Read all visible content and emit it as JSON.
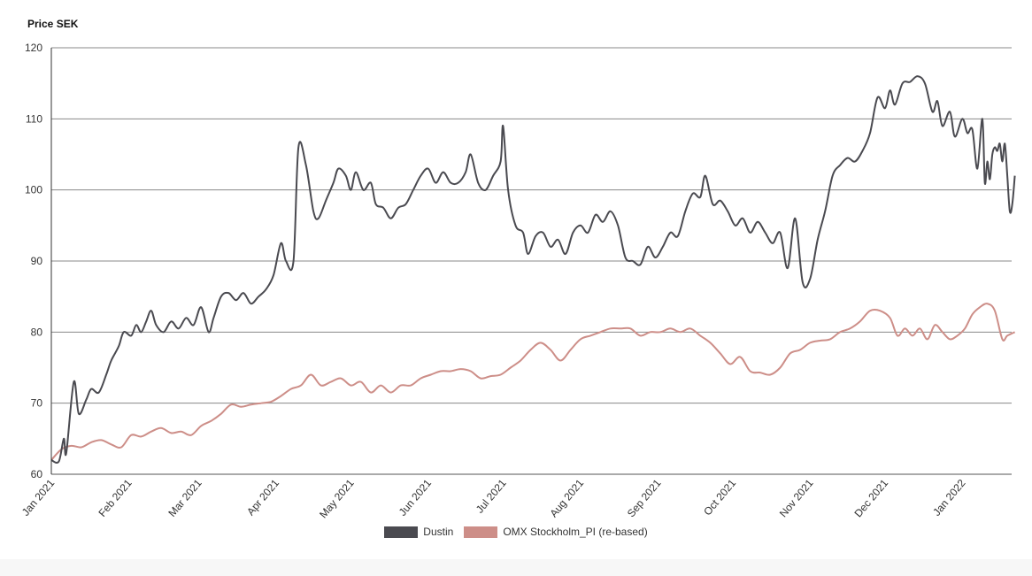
{
  "chart_data": {
    "type": "line",
    "ylabel": "Price SEK",
    "ylim": [
      60,
      120
    ],
    "yticks": [
      60,
      70,
      80,
      90,
      100,
      110,
      120
    ],
    "xlim": [
      "2021-01-01",
      "2022-01-14"
    ],
    "xticks": [
      {
        "label": "Jan 2021",
        "date": "2021-01-01"
      },
      {
        "label": "Feb 2021",
        "date": "2021-02-01"
      },
      {
        "label": "Mar 2021",
        "date": "2021-03-01"
      },
      {
        "label": "Apr 2021",
        "date": "2021-04-01"
      },
      {
        "label": "May 2021",
        "date": "2021-05-01"
      },
      {
        "label": "Jun 2021",
        "date": "2021-06-01"
      },
      {
        "label": "Jul 2021",
        "date": "2021-07-01"
      },
      {
        "label": "Aug 2021",
        "date": "2021-08-01"
      },
      {
        "label": "Sep 2021",
        "date": "2021-09-01"
      },
      {
        "label": "Oct 2021",
        "date": "2021-10-01"
      },
      {
        "label": "Nov 2021",
        "date": "2021-11-01"
      },
      {
        "label": "Dec 2021",
        "date": "2021-12-01"
      },
      {
        "label": "Jan 2022",
        "date": "2022-01-01"
      }
    ],
    "grid": "horizontal",
    "legend_position": "bottom-center",
    "series": [
      {
        "name": "Dustin",
        "color": "#4a4a50",
        "points": [
          [
            "2021-01-01",
            62
          ],
          [
            "2021-01-04",
            61.8
          ],
          [
            "2021-01-06",
            65
          ],
          [
            "2021-01-07",
            63
          ],
          [
            "2021-01-10",
            73
          ],
          [
            "2021-01-12",
            68.5
          ],
          [
            "2021-01-15",
            70.5
          ],
          [
            "2021-01-17",
            72
          ],
          [
            "2021-01-20",
            71.5
          ],
          [
            "2021-01-23",
            74
          ],
          [
            "2021-01-25",
            76
          ],
          [
            "2021-01-28",
            78
          ],
          [
            "2021-01-30",
            80
          ],
          [
            "2021-02-02",
            79.5
          ],
          [
            "2021-02-04",
            81
          ],
          [
            "2021-02-06",
            80
          ],
          [
            "2021-02-08",
            81.5
          ],
          [
            "2021-02-10",
            83
          ],
          [
            "2021-02-12",
            81
          ],
          [
            "2021-02-15",
            80
          ],
          [
            "2021-02-18",
            81.5
          ],
          [
            "2021-02-21",
            80.5
          ],
          [
            "2021-02-24",
            82
          ],
          [
            "2021-02-27",
            81
          ],
          [
            "2021-03-02",
            83.5
          ],
          [
            "2021-03-05",
            80
          ],
          [
            "2021-03-07",
            82
          ],
          [
            "2021-03-10",
            85
          ],
          [
            "2021-03-13",
            85.5
          ],
          [
            "2021-03-16",
            84.5
          ],
          [
            "2021-03-19",
            85.5
          ],
          [
            "2021-03-22",
            84
          ],
          [
            "2021-03-25",
            85
          ],
          [
            "2021-03-28",
            86
          ],
          [
            "2021-03-31",
            88
          ],
          [
            "2021-04-03",
            92.5
          ],
          [
            "2021-04-05",
            90
          ],
          [
            "2021-04-08",
            90
          ],
          [
            "2021-04-10",
            106
          ],
          [
            "2021-04-13",
            103.5
          ],
          [
            "2021-04-16",
            97
          ],
          [
            "2021-04-18",
            96
          ],
          [
            "2021-04-21",
            98.5
          ],
          [
            "2021-04-24",
            101
          ],
          [
            "2021-04-26",
            103
          ],
          [
            "2021-04-29",
            102
          ],
          [
            "2021-05-01",
            100
          ],
          [
            "2021-05-03",
            102.5
          ],
          [
            "2021-05-06",
            100
          ],
          [
            "2021-05-09",
            101
          ],
          [
            "2021-05-11",
            98
          ],
          [
            "2021-05-14",
            97.5
          ],
          [
            "2021-05-17",
            96
          ],
          [
            "2021-05-20",
            97.5
          ],
          [
            "2021-05-23",
            98
          ],
          [
            "2021-05-26",
            100
          ],
          [
            "2021-05-29",
            102
          ],
          [
            "2021-06-01",
            103
          ],
          [
            "2021-06-04",
            101
          ],
          [
            "2021-06-07",
            102.5
          ],
          [
            "2021-06-10",
            101
          ],
          [
            "2021-06-13",
            101
          ],
          [
            "2021-06-16",
            102.5
          ],
          [
            "2021-06-18",
            105
          ],
          [
            "2021-06-21",
            101
          ],
          [
            "2021-06-24",
            100
          ],
          [
            "2021-06-27",
            102
          ],
          [
            "2021-06-30",
            104
          ],
          [
            "2021-07-01",
            109
          ],
          [
            "2021-07-03",
            100
          ],
          [
            "2021-07-06",
            95
          ],
          [
            "2021-07-09",
            94
          ],
          [
            "2021-07-11",
            91
          ],
          [
            "2021-07-14",
            93.5
          ],
          [
            "2021-07-17",
            94
          ],
          [
            "2021-07-20",
            92
          ],
          [
            "2021-07-23",
            93
          ],
          [
            "2021-07-26",
            91
          ],
          [
            "2021-07-29",
            94
          ],
          [
            "2021-08-01",
            95
          ],
          [
            "2021-08-04",
            94
          ],
          [
            "2021-08-07",
            96.5
          ],
          [
            "2021-08-10",
            95.5
          ],
          [
            "2021-08-13",
            97
          ],
          [
            "2021-08-16",
            95
          ],
          [
            "2021-08-19",
            90.5
          ],
          [
            "2021-08-22",
            90
          ],
          [
            "2021-08-25",
            89.5
          ],
          [
            "2021-08-28",
            92
          ],
          [
            "2021-08-31",
            90.5
          ],
          [
            "2021-09-03",
            92
          ],
          [
            "2021-09-06",
            94
          ],
          [
            "2021-09-09",
            93.5
          ],
          [
            "2021-09-12",
            97
          ],
          [
            "2021-09-15",
            99.5
          ],
          [
            "2021-09-18",
            99
          ],
          [
            "2021-09-20",
            102
          ],
          [
            "2021-09-23",
            98
          ],
          [
            "2021-09-26",
            98.5
          ],
          [
            "2021-09-29",
            97
          ],
          [
            "2021-10-02",
            95
          ],
          [
            "2021-10-05",
            96
          ],
          [
            "2021-10-08",
            94
          ],
          [
            "2021-10-11",
            95.5
          ],
          [
            "2021-10-14",
            94
          ],
          [
            "2021-10-17",
            92.5
          ],
          [
            "2021-10-20",
            94
          ],
          [
            "2021-10-23",
            89
          ],
          [
            "2021-10-26",
            96
          ],
          [
            "2021-10-29",
            87
          ],
          [
            "2021-11-01",
            87.5
          ],
          [
            "2021-11-04",
            93
          ],
          [
            "2021-11-07",
            97
          ],
          [
            "2021-11-10",
            102
          ],
          [
            "2021-11-13",
            103.5
          ],
          [
            "2021-11-16",
            104.5
          ],
          [
            "2021-11-19",
            104
          ],
          [
            "2021-11-22",
            105.5
          ],
          [
            "2021-11-25",
            108
          ],
          [
            "2021-11-28",
            113
          ],
          [
            "2021-12-01",
            111.5
          ],
          [
            "2021-12-03",
            114
          ],
          [
            "2021-12-05",
            112
          ],
          [
            "2021-12-08",
            115
          ],
          [
            "2021-12-11",
            115.2
          ],
          [
            "2021-12-14",
            116
          ],
          [
            "2021-12-17",
            115
          ],
          [
            "2021-12-20",
            111
          ],
          [
            "2021-12-22",
            112.5
          ],
          [
            "2021-12-24",
            109
          ],
          [
            "2021-12-27",
            111
          ],
          [
            "2021-12-29",
            107.5
          ],
          [
            "2022-01-01",
            110
          ],
          [
            "2022-01-03",
            108
          ],
          [
            "2022-01-05",
            108.5
          ],
          [
            "2022-01-07",
            103
          ],
          [
            "2022-01-09",
            110
          ],
          [
            "2022-01-10",
            101
          ],
          [
            "2022-01-11",
            104
          ],
          [
            "2022-01-12",
            101.5
          ],
          [
            "2022-01-13",
            105
          ],
          [
            "2022-01-14",
            106
          ],
          [
            "2022-01-15",
            105.5
          ],
          [
            "2022-01-16",
            106.5
          ],
          [
            "2022-01-17",
            104
          ],
          [
            "2022-01-18",
            106.5
          ],
          [
            "2022-01-19",
            102
          ],
          [
            "2022-01-20",
            97
          ],
          [
            "2022-01-21",
            98
          ],
          [
            "2022-01-22",
            102
          ]
        ]
      },
      {
        "name": "OMX Stockholm_PI (re-based)",
        "color": "#cd8e88",
        "points": [
          [
            "2021-01-01",
            62
          ],
          [
            "2021-01-05",
            63.5
          ],
          [
            "2021-01-09",
            64
          ],
          [
            "2021-01-13",
            63.8
          ],
          [
            "2021-01-17",
            64.5
          ],
          [
            "2021-01-21",
            64.8
          ],
          [
            "2021-01-25",
            64.2
          ],
          [
            "2021-01-29",
            63.8
          ],
          [
            "2021-02-02",
            65.5
          ],
          [
            "2021-02-06",
            65.3
          ],
          [
            "2021-02-10",
            66
          ],
          [
            "2021-02-14",
            66.5
          ],
          [
            "2021-02-18",
            65.8
          ],
          [
            "2021-02-22",
            66
          ],
          [
            "2021-02-26",
            65.5
          ],
          [
            "2021-03-02",
            66.8
          ],
          [
            "2021-03-06",
            67.5
          ],
          [
            "2021-03-10",
            68.5
          ],
          [
            "2021-03-14",
            69.8
          ],
          [
            "2021-03-18",
            69.5
          ],
          [
            "2021-03-22",
            69.8
          ],
          [
            "2021-03-26",
            70
          ],
          [
            "2021-03-30",
            70.2
          ],
          [
            "2021-04-03",
            71
          ],
          [
            "2021-04-07",
            72
          ],
          [
            "2021-04-11",
            72.5
          ],
          [
            "2021-04-15",
            74
          ],
          [
            "2021-04-19",
            72.5
          ],
          [
            "2021-04-23",
            73
          ],
          [
            "2021-04-27",
            73.5
          ],
          [
            "2021-05-01",
            72.5
          ],
          [
            "2021-05-05",
            73
          ],
          [
            "2021-05-09",
            71.5
          ],
          [
            "2021-05-13",
            72.5
          ],
          [
            "2021-05-17",
            71.5
          ],
          [
            "2021-05-21",
            72.5
          ],
          [
            "2021-05-25",
            72.5
          ],
          [
            "2021-05-29",
            73.5
          ],
          [
            "2021-06-02",
            74
          ],
          [
            "2021-06-06",
            74.5
          ],
          [
            "2021-06-10",
            74.5
          ],
          [
            "2021-06-14",
            74.8
          ],
          [
            "2021-06-18",
            74.5
          ],
          [
            "2021-06-22",
            73.5
          ],
          [
            "2021-06-26",
            73.8
          ],
          [
            "2021-06-30",
            74
          ],
          [
            "2021-07-04",
            75
          ],
          [
            "2021-07-08",
            76
          ],
          [
            "2021-07-12",
            77.5
          ],
          [
            "2021-07-16",
            78.5
          ],
          [
            "2021-07-20",
            77.5
          ],
          [
            "2021-07-24",
            76
          ],
          [
            "2021-07-28",
            77.5
          ],
          [
            "2021-08-01",
            79
          ],
          [
            "2021-08-05",
            79.5
          ],
          [
            "2021-08-09",
            80
          ],
          [
            "2021-08-13",
            80.5
          ],
          [
            "2021-08-17",
            80.5
          ],
          [
            "2021-08-21",
            80.5
          ],
          [
            "2021-08-25",
            79.5
          ],
          [
            "2021-08-29",
            80
          ],
          [
            "2021-09-02",
            80
          ],
          [
            "2021-09-06",
            80.5
          ],
          [
            "2021-09-10",
            80
          ],
          [
            "2021-09-14",
            80.5
          ],
          [
            "2021-09-18",
            79.5
          ],
          [
            "2021-09-22",
            78.5
          ],
          [
            "2021-09-26",
            77
          ],
          [
            "2021-09-30",
            75.5
          ],
          [
            "2021-10-04",
            76.5
          ],
          [
            "2021-10-08",
            74.5
          ],
          [
            "2021-10-12",
            74.3
          ],
          [
            "2021-10-16",
            74
          ],
          [
            "2021-10-20",
            75
          ],
          [
            "2021-10-24",
            77
          ],
          [
            "2021-10-28",
            77.5
          ],
          [
            "2021-11-01",
            78.5
          ],
          [
            "2021-11-05",
            78.8
          ],
          [
            "2021-11-09",
            79
          ],
          [
            "2021-11-13",
            80
          ],
          [
            "2021-11-17",
            80.5
          ],
          [
            "2021-11-21",
            81.5
          ],
          [
            "2021-11-25",
            83
          ],
          [
            "2021-11-29",
            83
          ],
          [
            "2021-12-03",
            82
          ],
          [
            "2021-12-06",
            79.5
          ],
          [
            "2021-12-09",
            80.5
          ],
          [
            "2021-12-12",
            79.5
          ],
          [
            "2021-12-15",
            80.5
          ],
          [
            "2021-12-18",
            79
          ],
          [
            "2021-12-21",
            81
          ],
          [
            "2021-12-24",
            80
          ],
          [
            "2021-12-27",
            79
          ],
          [
            "2021-12-30",
            79.5
          ],
          [
            "2022-01-02",
            80.5
          ],
          [
            "2022-01-05",
            82.5
          ],
          [
            "2022-01-08",
            83.5
          ],
          [
            "2022-01-11",
            84
          ],
          [
            "2022-01-14",
            83
          ],
          [
            "2022-01-17",
            79
          ],
          [
            "2022-01-19",
            79.5
          ],
          [
            "2022-01-22",
            80
          ]
        ]
      }
    ]
  }
}
